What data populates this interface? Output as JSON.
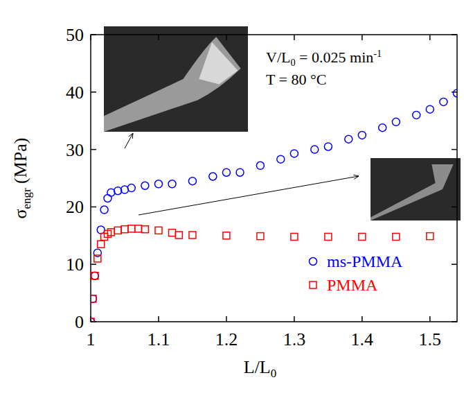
{
  "chart_data": {
    "type": "scatter",
    "x_label": {
      "text": "L/L",
      "sub": "0"
    },
    "y_label": {
      "text": "σ",
      "sub": "engr",
      "after": " (MPa)"
    },
    "annotations": [
      {
        "text": "V/L",
        "sub": "0",
        "after": " = 0.025 min",
        "sup": "-1"
      },
      {
        "text": "T = 80 °C"
      }
    ],
    "xlim": [
      1,
      1.54
    ],
    "xticks": [
      1,
      1.1,
      1.2,
      1.3,
      1.4,
      1.5
    ],
    "ylim": [
      0,
      50
    ],
    "yticks": [
      0,
      10,
      20,
      30,
      40,
      50
    ],
    "legend": "right",
    "series": [
      {
        "name": "ms-PMMA",
        "color": "#0000ff",
        "marker": "circle",
        "x": [
          1,
          1.003,
          1.006,
          1.01,
          1.015,
          1.02,
          1.025,
          1.03,
          1.04,
          1.05,
          1.06,
          1.08,
          1.1,
          1.12,
          1.15,
          1.18,
          1.2,
          1.22,
          1.25,
          1.28,
          1.3,
          1.33,
          1.35,
          1.38,
          1.4,
          1.43,
          1.45,
          1.48,
          1.5,
          1.52,
          1.54
        ],
        "values": [
          0,
          4,
          8,
          12,
          16,
          19.5,
          21.5,
          22.5,
          22.8,
          23,
          23.3,
          23.7,
          24,
          24,
          24.5,
          25.3,
          26,
          26,
          27.2,
          28.3,
          29.3,
          30,
          30.5,
          31.8,
          32.5,
          33.8,
          34.8,
          36,
          37,
          38.3,
          39.8
        ]
      },
      {
        "name": "PMMA",
        "color": "#ff0000",
        "marker": "square",
        "x": [
          1,
          1.003,
          1.006,
          1.01,
          1.015,
          1.02,
          1.025,
          1.03,
          1.04,
          1.05,
          1.06,
          1.07,
          1.08,
          1.1,
          1.12,
          1.13,
          1.15,
          1.2,
          1.25,
          1.3,
          1.35,
          1.4,
          1.45,
          1.5
        ],
        "values": [
          0,
          4,
          8,
          11,
          13.5,
          14.8,
          15.3,
          15.6,
          15.9,
          16.1,
          16.2,
          16.2,
          16.1,
          15.9,
          15.5,
          15.1,
          15.1,
          15,
          14.9,
          14.8,
          14.8,
          14.8,
          14.8,
          14.9
        ]
      }
    ]
  }
}
